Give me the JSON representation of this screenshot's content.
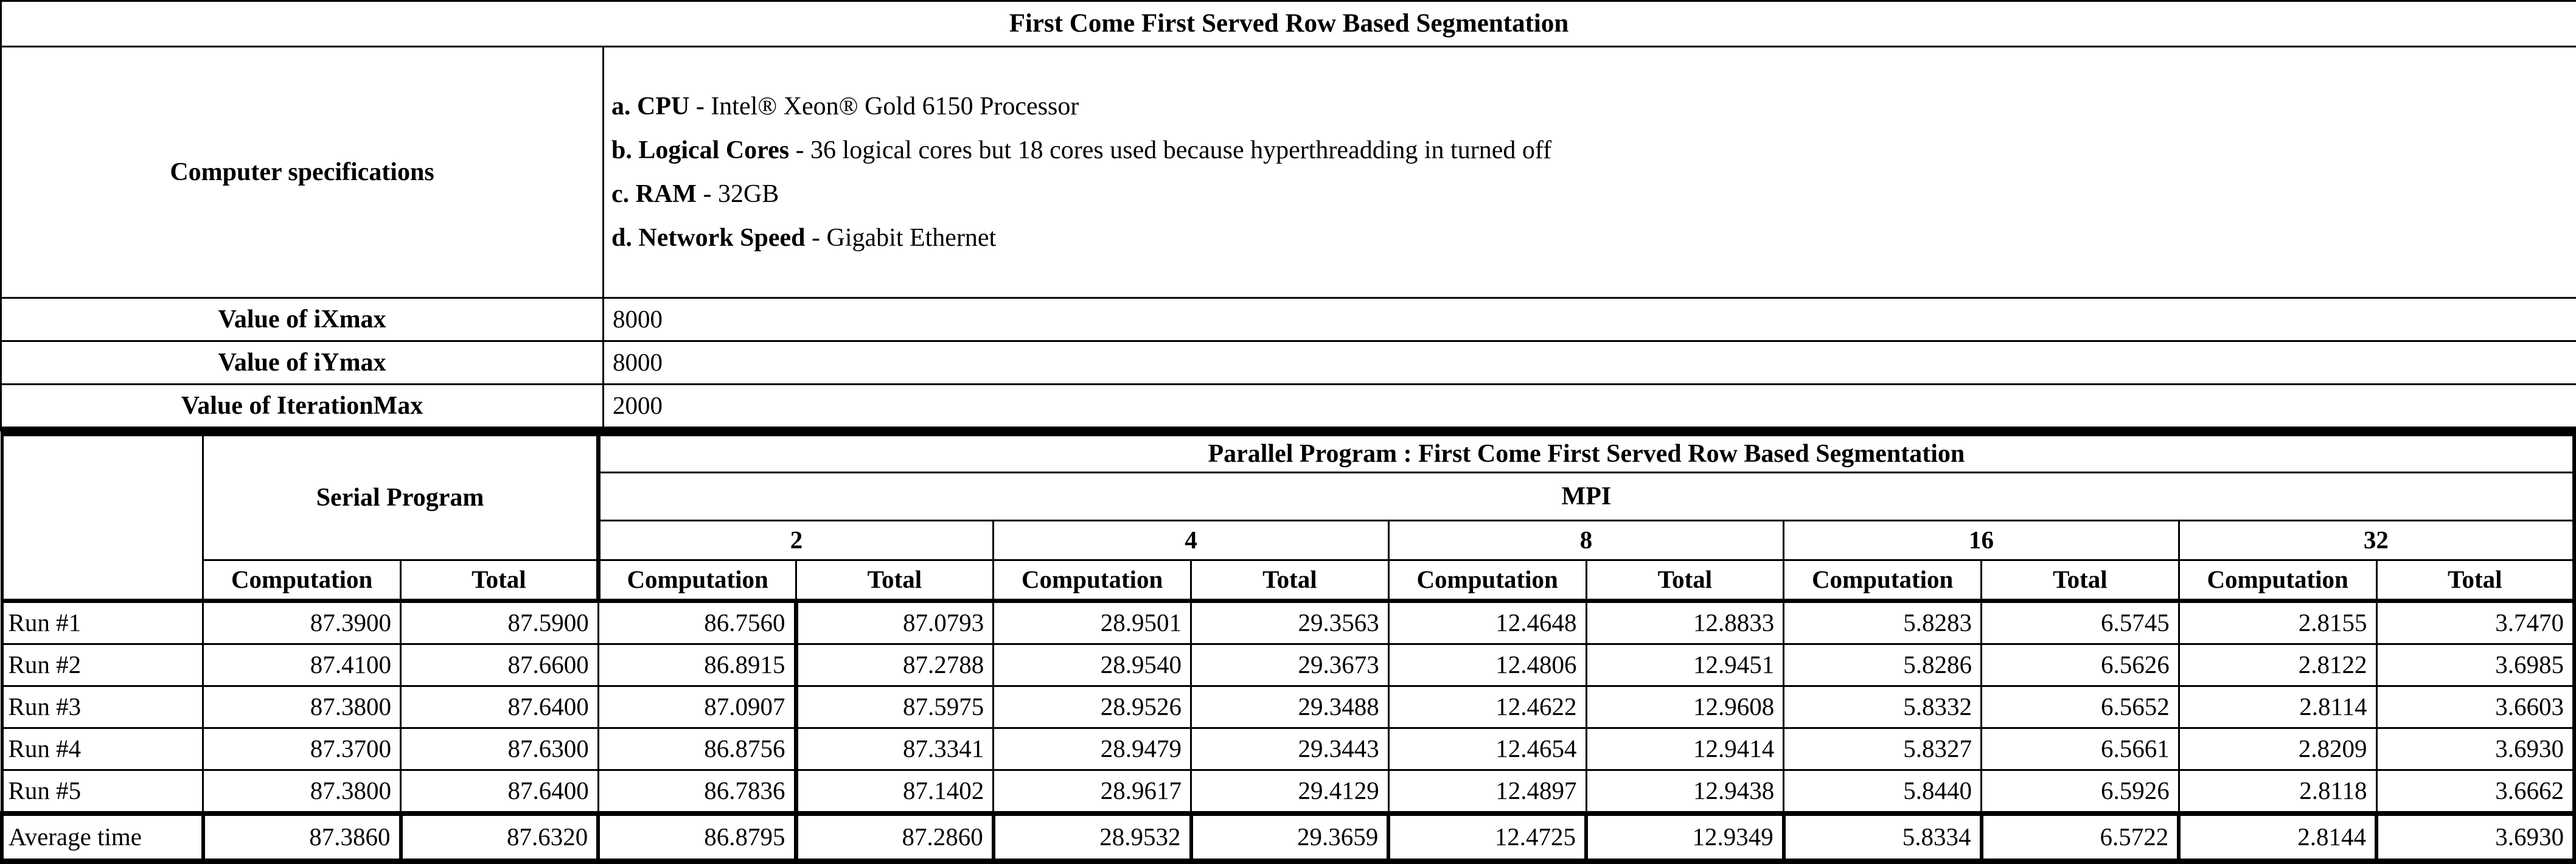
{
  "title": "First Come First Served Row Based Segmentation",
  "specs": {
    "label": "Computer specifications",
    "lines": [
      {
        "prefix": "a. CPU",
        "rest": " - Intel® Xeon® Gold 6150 Processor"
      },
      {
        "prefix": "b. Logical Cores",
        "rest": " - 36 logical cores but 18 cores used because hyperthreadding in turned off"
      },
      {
        "prefix": "c. RAM",
        "rest": " - 32GB"
      },
      {
        "prefix": "d. Network Speed",
        "rest": " - Gigabit Ethernet"
      }
    ]
  },
  "params": [
    {
      "label": "Value of iXmax",
      "value": "8000"
    },
    {
      "label": "Value of iYmax",
      "value": "8000"
    },
    {
      "label": "Value of IterationMax",
      "value": "2000"
    }
  ],
  "results": {
    "serial_header": "Serial Program",
    "parallel_header": "Parallel Program : First Come First Served Row Based Segmentation",
    "mpi_header": "MPI",
    "process_counts": [
      "2",
      "4",
      "8",
      "16",
      "32"
    ],
    "sub_headers": [
      "Computation",
      "Total"
    ],
    "rows": [
      {
        "label": "Run #1",
        "values": [
          "87.3900",
          "87.5900",
          "86.7560",
          "87.0793",
          "28.9501",
          "29.3563",
          "12.4648",
          "12.8833",
          "5.8283",
          "6.5745",
          "2.8155",
          "3.7470"
        ]
      },
      {
        "label": "Run #2",
        "values": [
          "87.4100",
          "87.6600",
          "86.8915",
          "87.2788",
          "28.9540",
          "29.3673",
          "12.4806",
          "12.9451",
          "5.8286",
          "6.5626",
          "2.8122",
          "3.6985"
        ]
      },
      {
        "label": "Run #3",
        "values": [
          "87.3800",
          "87.6400",
          "87.0907",
          "87.5975",
          "28.9526",
          "29.3488",
          "12.4622",
          "12.9608",
          "5.8332",
          "6.5652",
          "2.8114",
          "3.6603"
        ]
      },
      {
        "label": "Run #4",
        "values": [
          "87.3700",
          "87.6300",
          "86.8756",
          "87.3341",
          "28.9479",
          "29.3443",
          "12.4654",
          "12.9414",
          "5.8327",
          "6.5661",
          "2.8209",
          "3.6930"
        ]
      },
      {
        "label": "Run #5",
        "values": [
          "87.3800",
          "87.6400",
          "86.7836",
          "87.1402",
          "28.9617",
          "29.4129",
          "12.4897",
          "12.9438",
          "5.8440",
          "6.5926",
          "2.8118",
          "3.6662"
        ]
      },
      {
        "label": "Average time",
        "is_average": true,
        "values": [
          "87.3860",
          "87.6320",
          "86.8795",
          "87.2860",
          "28.9532",
          "29.3659",
          "12.4725",
          "12.9349",
          "5.8334",
          "6.5722",
          "2.8144",
          "3.6930"
        ]
      }
    ]
  },
  "colors": {
    "border": "#000000",
    "background": "#ffffff",
    "text": "#000000"
  }
}
